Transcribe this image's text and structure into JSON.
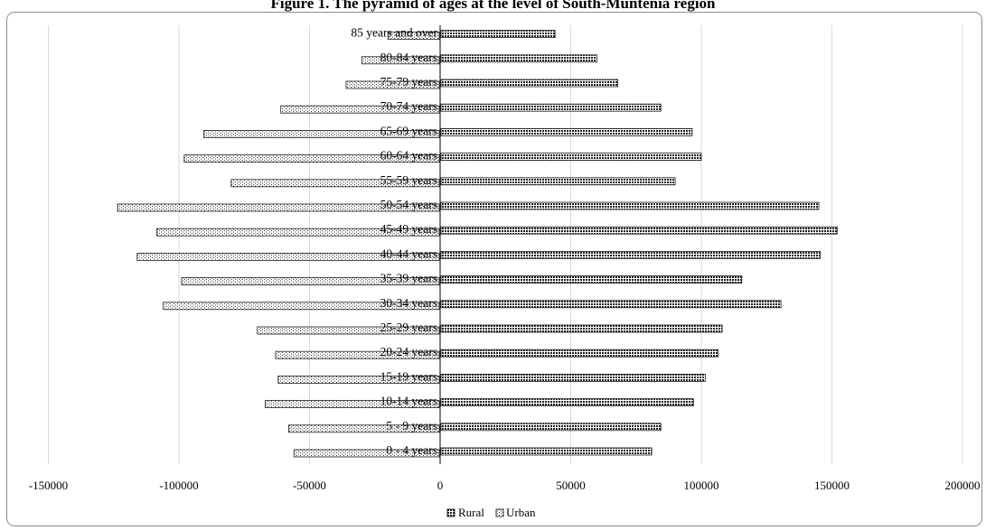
{
  "chart_data": {
    "type": "bar",
    "orientation": "horizontal",
    "title": "Figure 1. The pyramid of ages at the level of South-Muntenia region",
    "categories": [
      "0 - 4 years",
      "5 - 9 years",
      "10-14 years",
      "15-19 years",
      "20-24 years",
      "25-29 years",
      "30-34 years",
      "35-39 years",
      "40-44 years",
      "45-49 years",
      "50-54 years",
      "55-59 years",
      "60-64 years",
      "65-69 years",
      "70-74 years",
      "75-79 years",
      "80-84 years",
      "85 years and over"
    ],
    "series": [
      {
        "name": "Rural",
        "values": [
          81000,
          84500,
          97000,
          101500,
          106500,
          108000,
          130500,
          115500,
          145500,
          152000,
          145000,
          90000,
          100000,
          96500,
          84500,
          68000,
          60000,
          44000
        ]
      },
      {
        "name": "Urban",
        "values": [
          -56000,
          -58000,
          -67000,
          -62000,
          -63000,
          -70000,
          -106000,
          -99000,
          -116000,
          -108500,
          -123500,
          -80000,
          -98000,
          -90500,
          -61000,
          -36000,
          -30000,
          -20000
        ]
      }
    ],
    "xlim": [
      -150000,
      200000
    ],
    "xticks": [
      "-150000",
      "-100000",
      "-50000",
      "0",
      "50000",
      "100000",
      "150000",
      "200000"
    ],
    "grid": "vertical",
    "legend": "bottom"
  },
  "colors": {
    "rural": "#222222",
    "urban": "#f2f2f2",
    "grid": "#d9d9d9",
    "axis": "#000000"
  }
}
